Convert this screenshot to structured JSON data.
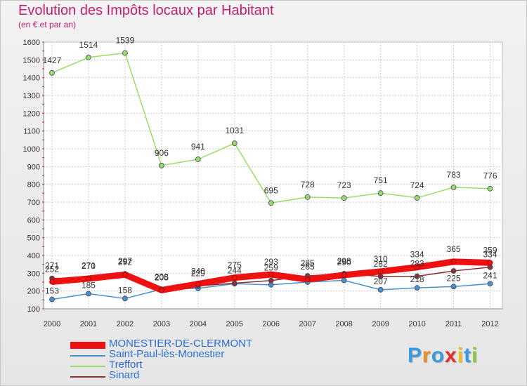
{
  "title": "Evolution des Impôts locaux par Habitant",
  "subtitle": "(en € et par an)",
  "logo": {
    "letters": [
      "P",
      "r",
      "o",
      "x",
      "i",
      "t",
      "i"
    ],
    "colors": [
      "#3a9ae0",
      "#f08a1c",
      "#3a9ae0",
      "#e0302a",
      "#f0c020",
      "#3a9ae0",
      "#8cc63f"
    ]
  },
  "chart_data": {
    "type": "line",
    "title": "Evolution des Impôts locaux par Habitant",
    "subtitle": "(en € et par an)",
    "x": [
      "2000",
      "2001",
      "2002",
      "2003",
      "2004",
      "2005",
      "2006",
      "2007",
      "2008",
      "2009",
      "2010",
      "2011",
      "2012"
    ],
    "ylim": [
      100,
      1600
    ],
    "yticks": [
      "100",
      "200",
      "300",
      "400",
      "500",
      "600",
      "700",
      "800",
      "900",
      "1000",
      "1100",
      "1200",
      "1300",
      "1400",
      "1500",
      "1600"
    ],
    "grid": true,
    "legend_position": "bottom-left",
    "series": [
      {
        "name": "MONESTIER-DE-CLERMONT",
        "color": "#ee1111",
        "values": [
          252,
          270,
          292,
          205,
          240,
          275,
          293,
          265,
          290,
          310,
          334,
          365,
          359
        ],
        "labels": [
          "252",
          "270",
          "292",
          "205",
          "240",
          "275",
          "293",
          "265",
          "290",
          "310",
          "334",
          "365",
          "359"
        ]
      },
      {
        "name": "Saint-Paul-lès-Monestier",
        "color": "#4a90c8",
        "values": [
          153,
          185,
          158,
          210,
          215,
          241,
          235,
          250,
          260,
          207,
          218,
          225,
          241
        ],
        "labels": [
          "153",
          "185",
          "158",
          "",
          "",
          "",
          "",
          "",
          "",
          "207",
          "218",
          "225",
          "241"
        ]
      },
      {
        "name": "Treffort",
        "color": "#99dd66",
        "values": [
          1427,
          1514,
          1539,
          906,
          941,
          1031,
          695,
          728,
          723,
          751,
          724,
          783,
          776
        ],
        "labels": [
          "1427",
          "1514",
          "1539",
          "906",
          "941",
          "1031",
          "695",
          "728",
          "723",
          "751",
          "724",
          "783",
          "776"
        ]
      },
      {
        "name": "Sinard",
        "color": "#883333",
        "values": [
          271,
          271,
          297,
          208,
          229,
          244,
          259,
          285,
          298,
          282,
          283,
          313,
          334
        ],
        "labels": [
          "271",
          "271",
          "297",
          "208",
          "229",
          "244",
          "259",
          "285",
          "298",
          "282",
          "283",
          "",
          "334"
        ]
      }
    ]
  }
}
